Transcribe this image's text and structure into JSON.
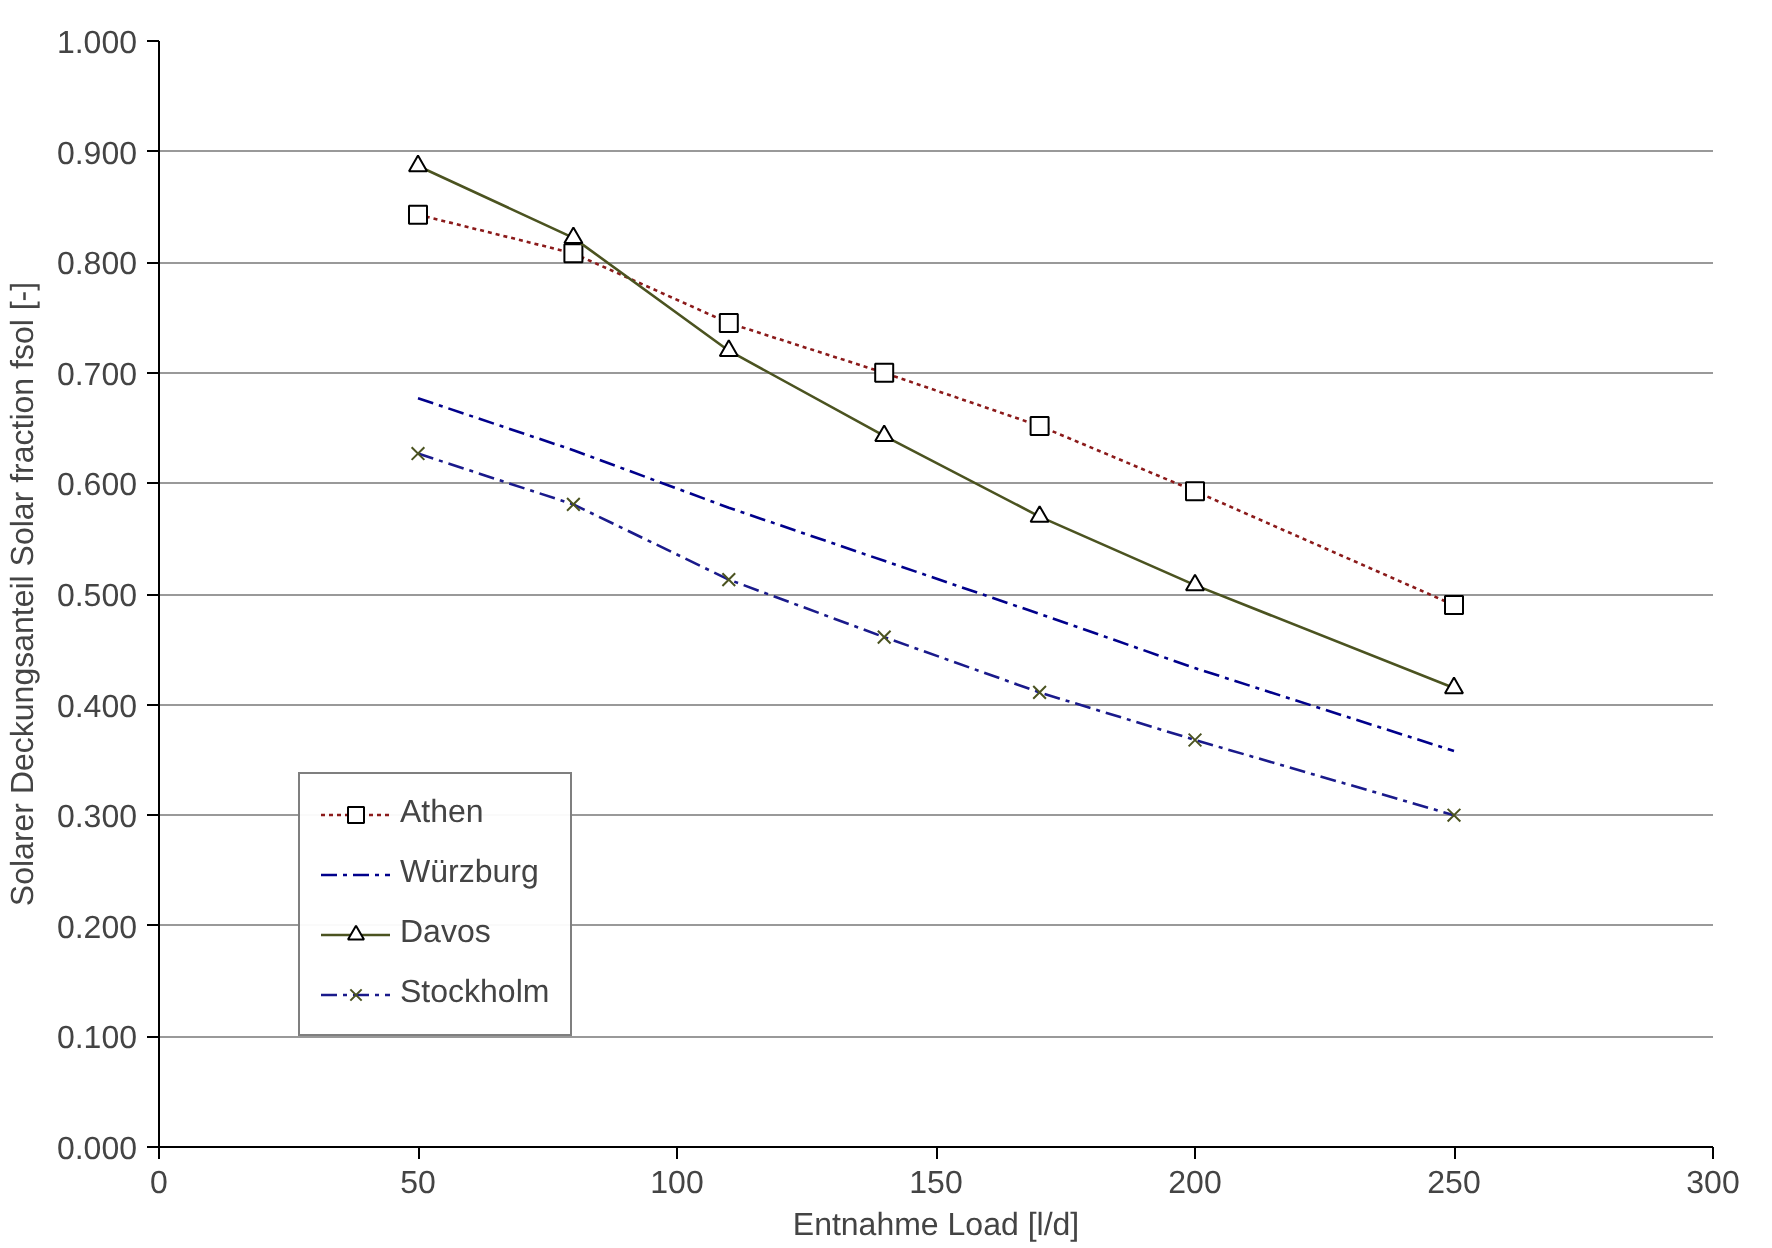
{
  "chart_data": {
    "type": "line",
    "xlabel": "Entnahme Load [l/d]",
    "ylabel": "Solarer Deckungsanteil Solar fraction fsol [-]",
    "xlim": [
      0,
      300
    ],
    "xticks": [
      0,
      50,
      100,
      150,
      200,
      250,
      300
    ],
    "ylim": [
      0,
      1
    ],
    "yticks": [
      {
        "value": 0,
        "label": "0.000"
      },
      {
        "value": 0.1,
        "label": "0.100"
      },
      {
        "value": 0.2,
        "label": "0.200"
      },
      {
        "value": 0.3,
        "label": "0.300"
      },
      {
        "value": 0.4,
        "label": "0.400"
      },
      {
        "value": 0.5,
        "label": "0.500"
      },
      {
        "value": 0.6,
        "label": "0.600"
      },
      {
        "value": 0.7,
        "label": "0.700"
      },
      {
        "value": 0.8,
        "label": "0.800"
      },
      {
        "value": 0.9,
        "label": "0.900"
      },
      {
        "value": 1,
        "label": "1.000"
      }
    ],
    "grid": "y",
    "legend": "bottom left",
    "x": [
      50,
      80,
      110,
      140,
      170,
      200,
      250
    ],
    "series": [
      {
        "name": "Athen",
        "color": "#8b1a1a",
        "marker": "square",
        "line_style": "dotted",
        "values": [
          0.843,
          0.808,
          0.745,
          0.7,
          0.652,
          0.593,
          0.49
        ]
      },
      {
        "name": "Würzburg",
        "color": "#00008b",
        "marker": "none",
        "line_style": "dashed",
        "values": [
          0.677,
          0.63,
          0.578,
          0.53,
          0.482,
          0.433,
          0.358
        ]
      },
      {
        "name": "Davos",
        "color": "#4b5320",
        "marker": "triangle",
        "line_style": "solid",
        "values": [
          0.887,
          0.822,
          0.72,
          0.643,
          0.57,
          0.508,
          0.415
        ]
      },
      {
        "name": "Stockholm",
        "color": "#1a1a8b",
        "marker": "cross",
        "line_style": "dashed",
        "values": [
          0.627,
          0.581,
          0.513,
          0.461,
          0.411,
          0.368,
          0.3
        ]
      }
    ]
  }
}
